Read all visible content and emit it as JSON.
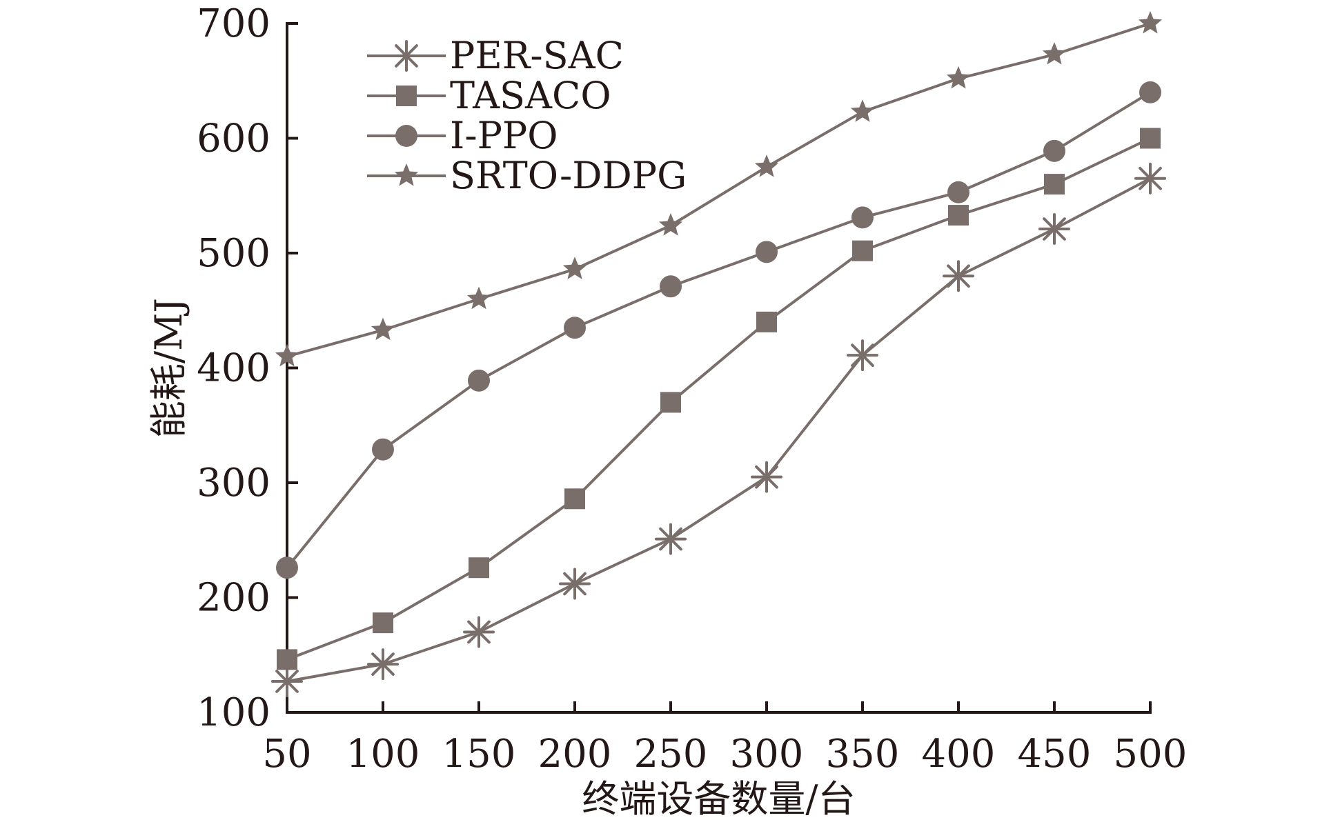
{
  "chart_data": {
    "type": "line",
    "title": "",
    "xlabel": "终端设备数量/台",
    "ylabel": "能耗/MJ",
    "x": [
      50,
      100,
      150,
      200,
      250,
      300,
      350,
      400,
      450,
      500
    ],
    "xlim": [
      50,
      500
    ],
    "ylim": [
      100,
      700
    ],
    "xticks": [
      50,
      100,
      150,
      200,
      250,
      300,
      350,
      400,
      450,
      500
    ],
    "yticks": [
      100,
      200,
      300,
      400,
      500,
      600,
      700
    ],
    "xtick_labels": [
      "50",
      "100",
      "150",
      "200",
      "250",
      "300",
      "350",
      "400",
      "450",
      "500"
    ],
    "ytick_labels": [
      "100",
      "200",
      "300",
      "400",
      "500",
      "600",
      "700"
    ],
    "grid": false,
    "legend_position": "top-left",
    "color": "#7a6e6b",
    "series": [
      {
        "name": "PER-SAC",
        "marker": "asterisk",
        "values": [
          127,
          142,
          170,
          212,
          251,
          305,
          411,
          480,
          521,
          565
        ]
      },
      {
        "name": "TASACO",
        "marker": "square",
        "values": [
          146,
          178,
          226,
          286,
          370,
          440,
          502,
          533,
          560,
          600
        ]
      },
      {
        "name": "I-PPO",
        "marker": "circle",
        "values": [
          226,
          329,
          389,
          435,
          471,
          501,
          531,
          553,
          589,
          640
        ]
      },
      {
        "name": "SRTO-DDPG",
        "marker": "star",
        "values": [
          410,
          433,
          460,
          486,
          524,
          575,
          623,
          652,
          673,
          700
        ]
      }
    ]
  }
}
